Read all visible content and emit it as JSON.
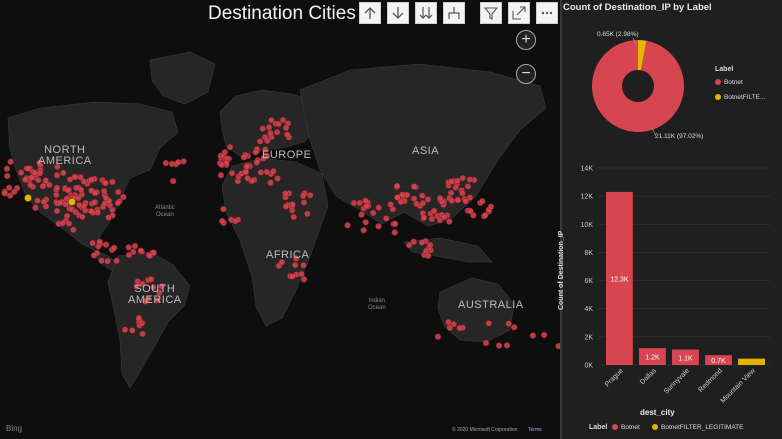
{
  "map": {
    "title": "Destination Cities",
    "toolbar": {
      "up": "arrow-up",
      "down": "arrow-down",
      "double_down": "double-arrow-down",
      "fork": "expand-hierarchy",
      "filter": "filter",
      "focus": "focus-mode",
      "more": "more"
    },
    "zoom_in": "+",
    "zoom_out": "−",
    "continents": {
      "north_america": [
        "NORTH",
        "AMERICA"
      ],
      "south_america": [
        "SOUTH",
        "AMERICA"
      ],
      "europe": "EUROPE",
      "asia": "ASIA",
      "africa": "AFRICA",
      "australia": "AUSTRALIA"
    },
    "oceans": {
      "atlantic": [
        "Atlantic",
        "Ocean"
      ],
      "indian": [
        "Indian",
        "Ocean"
      ]
    },
    "bing": "Bing",
    "copyright": "© 2020 Microsoft Corporation",
    "terms": "Terms",
    "colors": {
      "botnet": "#d64550",
      "legit": "#e8b400"
    }
  },
  "donut": {
    "title": "Count of Destination_IP by Label",
    "label_small": "0.65K (2.98%)",
    "label_large": "21.11K (97.02%)",
    "legend_title": "Label",
    "legend": [
      "Botnet",
      "BotnetFILTE..."
    ]
  },
  "bar": {
    "ylabel": "Count of Destination_IP",
    "xlabel": "dest_city",
    "legend_title": "Label",
    "legend": [
      "Botnet",
      "BotnetFILTER_LEGITIMATE"
    ]
  },
  "chart_data": [
    {
      "type": "pie",
      "title": "Count of Destination_IP by Label",
      "labels": [
        "Botnet",
        "BotnetFILTER_LEGITIMATE"
      ],
      "values": [
        21110,
        650
      ],
      "display_labels": [
        "21.11K (97.02%)",
        "0.65K (2.98%)"
      ],
      "colors": [
        "#d64550",
        "#e8b400"
      ]
    },
    {
      "type": "bar",
      "xlabel": "dest_city",
      "ylabel": "Count of Destination_IP",
      "categories": [
        "Prague",
        "Dallas",
        "Sunnyvale",
        "Redmond",
        "Mountain View"
      ],
      "series": [
        {
          "name": "Botnet",
          "values": [
            12300,
            1200,
            1100,
            700,
            0
          ],
          "data_labels": [
            "12.3K",
            "1.2K",
            "1.1K",
            "0.7K",
            ""
          ]
        },
        {
          "name": "BotnetFILTER_LEGITIMATE",
          "values": [
            0,
            0,
            0,
            0,
            450
          ]
        }
      ],
      "ylim": [
        0,
        14000
      ],
      "yticks": [
        "0K",
        "2K",
        "4K",
        "6K",
        "8K",
        "10K",
        "12K",
        "14K"
      ],
      "colors": [
        "#d64550",
        "#e8b400"
      ]
    }
  ]
}
